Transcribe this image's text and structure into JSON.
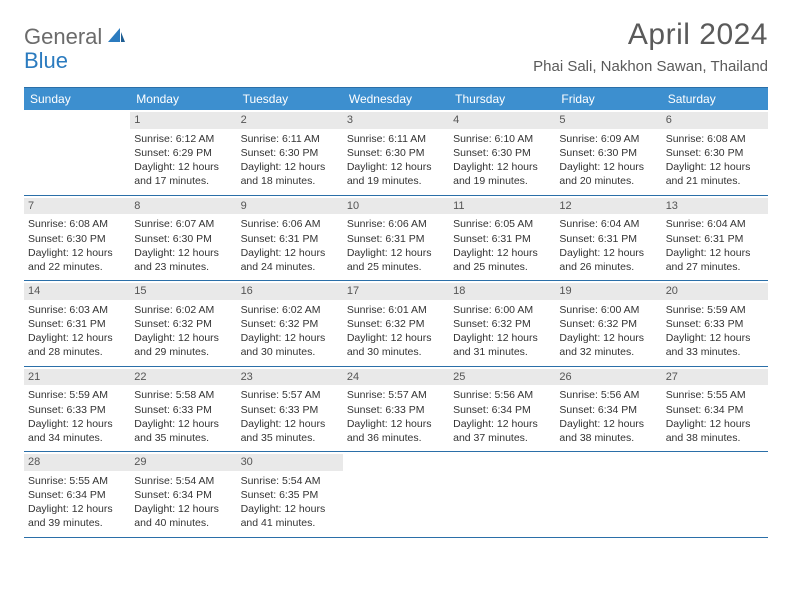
{
  "logo": {
    "text1": "General",
    "text2": "Blue"
  },
  "title": "April 2024",
  "location": "Phai Sali, Nakhon Sawan, Thailand",
  "colors": {
    "header_bg": "#3d8fcf",
    "border": "#2b6fa8",
    "daynum_bg": "#e9e9e9",
    "text": "#333333",
    "title_text": "#5a5a5a",
    "logo_gray": "#6b6b6b",
    "logo_blue": "#2b7bbf"
  },
  "daysOfWeek": [
    "Sunday",
    "Monday",
    "Tuesday",
    "Wednesday",
    "Thursday",
    "Friday",
    "Saturday"
  ],
  "weeks": [
    [
      {
        "blank": true
      },
      {
        "n": "1",
        "sunrise": "6:12 AM",
        "sunset": "6:29 PM",
        "daylight": "12 hours and 17 minutes."
      },
      {
        "n": "2",
        "sunrise": "6:11 AM",
        "sunset": "6:30 PM",
        "daylight": "12 hours and 18 minutes."
      },
      {
        "n": "3",
        "sunrise": "6:11 AM",
        "sunset": "6:30 PM",
        "daylight": "12 hours and 19 minutes."
      },
      {
        "n": "4",
        "sunrise": "6:10 AM",
        "sunset": "6:30 PM",
        "daylight": "12 hours and 19 minutes."
      },
      {
        "n": "5",
        "sunrise": "6:09 AM",
        "sunset": "6:30 PM",
        "daylight": "12 hours and 20 minutes."
      },
      {
        "n": "6",
        "sunrise": "6:08 AM",
        "sunset": "6:30 PM",
        "daylight": "12 hours and 21 minutes."
      }
    ],
    [
      {
        "n": "7",
        "sunrise": "6:08 AM",
        "sunset": "6:30 PM",
        "daylight": "12 hours and 22 minutes."
      },
      {
        "n": "8",
        "sunrise": "6:07 AM",
        "sunset": "6:30 PM",
        "daylight": "12 hours and 23 minutes."
      },
      {
        "n": "9",
        "sunrise": "6:06 AM",
        "sunset": "6:31 PM",
        "daylight": "12 hours and 24 minutes."
      },
      {
        "n": "10",
        "sunrise": "6:06 AM",
        "sunset": "6:31 PM",
        "daylight": "12 hours and 25 minutes."
      },
      {
        "n": "11",
        "sunrise": "6:05 AM",
        "sunset": "6:31 PM",
        "daylight": "12 hours and 25 minutes."
      },
      {
        "n": "12",
        "sunrise": "6:04 AM",
        "sunset": "6:31 PM",
        "daylight": "12 hours and 26 minutes."
      },
      {
        "n": "13",
        "sunrise": "6:04 AM",
        "sunset": "6:31 PM",
        "daylight": "12 hours and 27 minutes."
      }
    ],
    [
      {
        "n": "14",
        "sunrise": "6:03 AM",
        "sunset": "6:31 PM",
        "daylight": "12 hours and 28 minutes."
      },
      {
        "n": "15",
        "sunrise": "6:02 AM",
        "sunset": "6:32 PM",
        "daylight": "12 hours and 29 minutes."
      },
      {
        "n": "16",
        "sunrise": "6:02 AM",
        "sunset": "6:32 PM",
        "daylight": "12 hours and 30 minutes."
      },
      {
        "n": "17",
        "sunrise": "6:01 AM",
        "sunset": "6:32 PM",
        "daylight": "12 hours and 30 minutes."
      },
      {
        "n": "18",
        "sunrise": "6:00 AM",
        "sunset": "6:32 PM",
        "daylight": "12 hours and 31 minutes."
      },
      {
        "n": "19",
        "sunrise": "6:00 AM",
        "sunset": "6:32 PM",
        "daylight": "12 hours and 32 minutes."
      },
      {
        "n": "20",
        "sunrise": "5:59 AM",
        "sunset": "6:33 PM",
        "daylight": "12 hours and 33 minutes."
      }
    ],
    [
      {
        "n": "21",
        "sunrise": "5:59 AM",
        "sunset": "6:33 PM",
        "daylight": "12 hours and 34 minutes."
      },
      {
        "n": "22",
        "sunrise": "5:58 AM",
        "sunset": "6:33 PM",
        "daylight": "12 hours and 35 minutes."
      },
      {
        "n": "23",
        "sunrise": "5:57 AM",
        "sunset": "6:33 PM",
        "daylight": "12 hours and 35 minutes."
      },
      {
        "n": "24",
        "sunrise": "5:57 AM",
        "sunset": "6:33 PM",
        "daylight": "12 hours and 36 minutes."
      },
      {
        "n": "25",
        "sunrise": "5:56 AM",
        "sunset": "6:34 PM",
        "daylight": "12 hours and 37 minutes."
      },
      {
        "n": "26",
        "sunrise": "5:56 AM",
        "sunset": "6:34 PM",
        "daylight": "12 hours and 38 minutes."
      },
      {
        "n": "27",
        "sunrise": "5:55 AM",
        "sunset": "6:34 PM",
        "daylight": "12 hours and 38 minutes."
      }
    ],
    [
      {
        "n": "28",
        "sunrise": "5:55 AM",
        "sunset": "6:34 PM",
        "daylight": "12 hours and 39 minutes."
      },
      {
        "n": "29",
        "sunrise": "5:54 AM",
        "sunset": "6:34 PM",
        "daylight": "12 hours and 40 minutes."
      },
      {
        "n": "30",
        "sunrise": "5:54 AM",
        "sunset": "6:35 PM",
        "daylight": "12 hours and 41 minutes."
      },
      {
        "blank": true
      },
      {
        "blank": true
      },
      {
        "blank": true
      },
      {
        "blank": true
      }
    ]
  ],
  "labels": {
    "sunrise": "Sunrise:",
    "sunset": "Sunset:",
    "daylight": "Daylight:"
  }
}
